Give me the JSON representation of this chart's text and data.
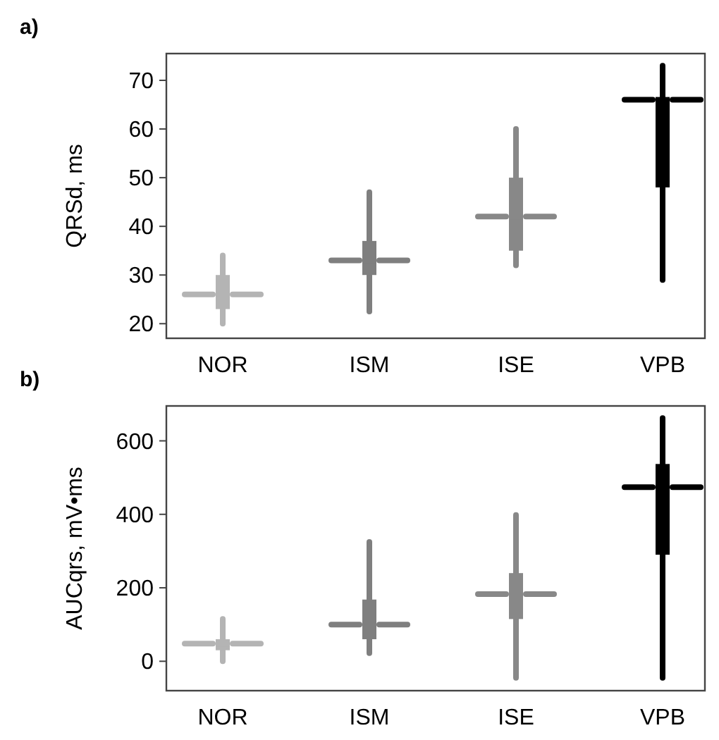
{
  "chart_data": [
    {
      "type": "box",
      "title": "a)",
      "ylabel": "QRSd, ms",
      "categories": [
        "NOR",
        "ISM",
        "ISE",
        "VPB"
      ],
      "colors": [
        "#b4b4b4",
        "#7f7f7f",
        "#888888",
        "#000000"
      ],
      "ylim": [
        17,
        75.5
      ],
      "yticks": [
        20,
        30,
        40,
        50,
        60,
        70
      ],
      "grid": false,
      "boxes": [
        {
          "low": 20,
          "q1": 23,
          "median": 26,
          "q3": 30,
          "high": 34
        },
        {
          "low": 22.5,
          "q1": 30,
          "median": 33,
          "q3": 37,
          "high": 47
        },
        {
          "low": 32,
          "q1": 35,
          "median": 42,
          "q3": 50,
          "high": 60
        },
        {
          "low": 29,
          "q1": 48,
          "median": 66,
          "q3": 66,
          "high": 73
        }
      ]
    },
    {
      "type": "box",
      "title": "b)",
      "ylabel": "AUCqrs, mV•ms",
      "categories": [
        "NOR",
        "ISM",
        "ISE",
        "VPB"
      ],
      "colors": [
        "#b4b4b4",
        "#7f7f7f",
        "#888888",
        "#000000"
      ],
      "ylim": [
        -80,
        695
      ],
      "yticks": [
        0,
        200,
        400,
        600
      ],
      "grid": false,
      "boxes": [
        {
          "low": 0,
          "q1": 30,
          "median": 48,
          "q3": 60,
          "high": 115
        },
        {
          "low": 22,
          "q1": 60,
          "median": 100,
          "q3": 168,
          "high": 325
        },
        {
          "low": -45,
          "q1": 115,
          "median": 183,
          "q3": 240,
          "high": 398
        },
        {
          "low": -45,
          "q1": 290,
          "median": 474,
          "q3": 537,
          "high": 662
        }
      ]
    }
  ]
}
